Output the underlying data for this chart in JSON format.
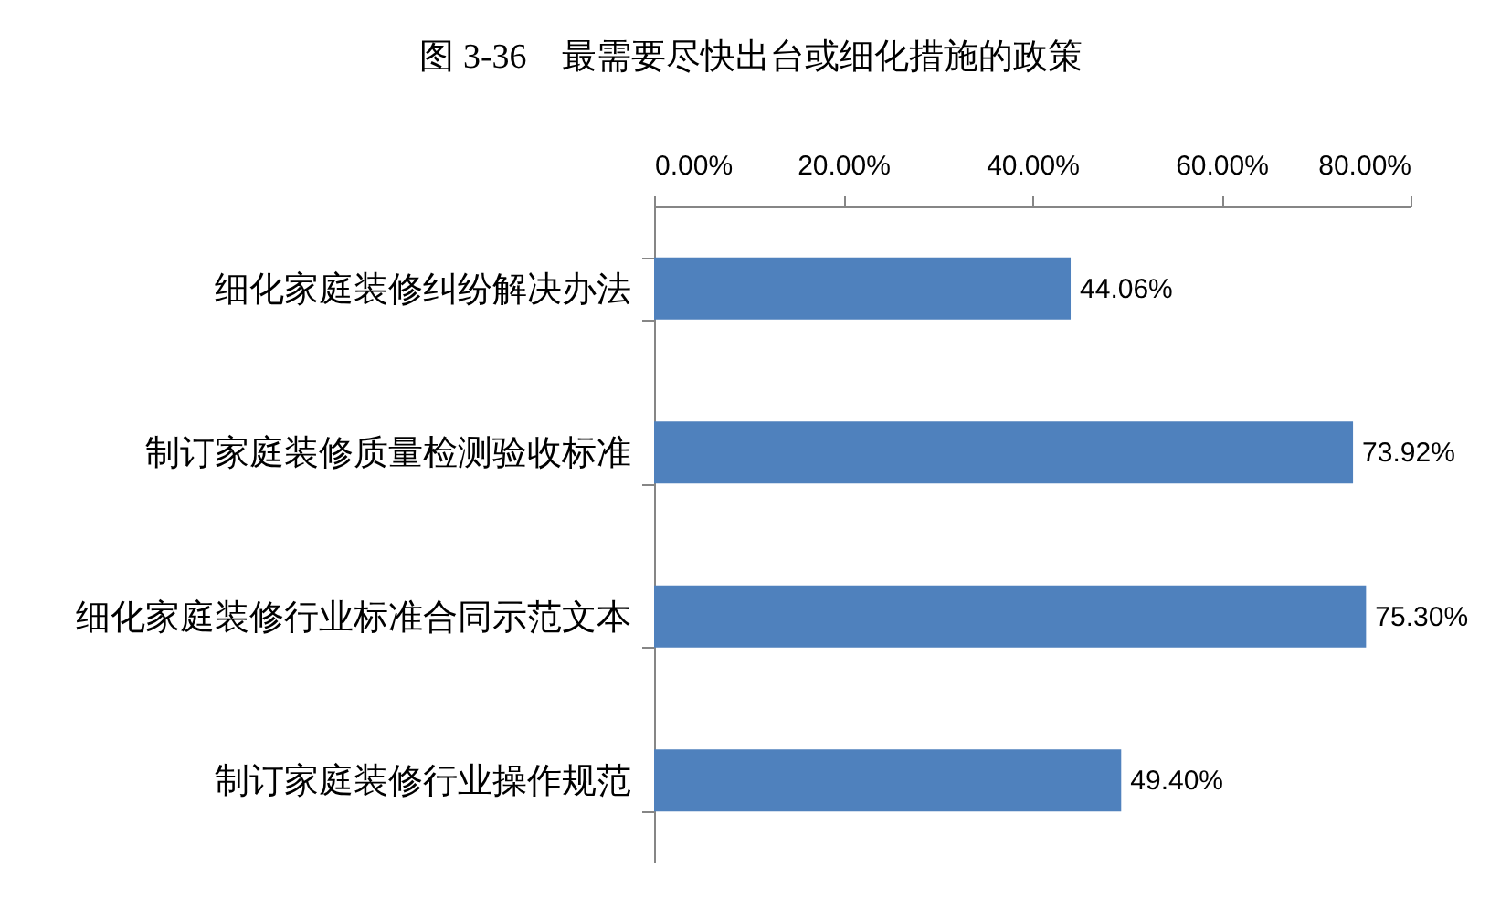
{
  "chart_data": {
    "type": "bar",
    "orientation": "horizontal",
    "title": "图 3-36　最需要尽快出台或细化措施的政策",
    "categories": [
      "细化家庭装修纠纷解决办法",
      "制订家庭装修质量检测验收标准",
      "细化家庭装修行业标准合同示范文本",
      "制订家庭装修行业操作规范"
    ],
    "values": [
      44.06,
      73.92,
      75.3,
      49.4
    ],
    "color": "#4f81bd",
    "value_labels": [
      "44.06%",
      "73.92%",
      "75.30%",
      "49.40%"
    ],
    "xlim": [
      0,
      80
    ],
    "xticks": [
      {
        "value": 0,
        "label": "0.00%"
      },
      {
        "value": 20,
        "label": "20.00%"
      },
      {
        "value": 40,
        "label": "40.00%"
      },
      {
        "value": 60,
        "label": "60.00%"
      },
      {
        "value": 80,
        "label": "80.00%"
      }
    ]
  }
}
